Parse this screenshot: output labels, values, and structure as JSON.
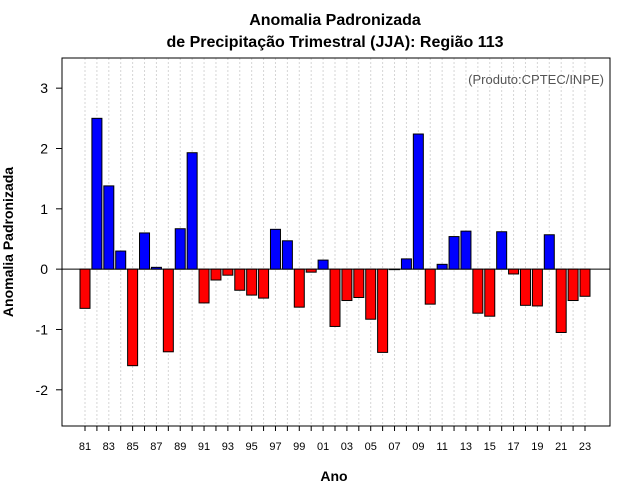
{
  "chart_data": {
    "type": "bar",
    "title": "Anomalia Padronizada",
    "subtitle": "de Precipitação Trimestral (JJA): Região 113",
    "xlabel": "Ano",
    "ylabel": "Anomalia Padronizada",
    "credit": "(Produto:CPTEC/INPE)",
    "ylim": [
      -2.6,
      3.5
    ],
    "yticks": [
      -2,
      -1,
      0,
      1,
      2,
      3
    ],
    "grid": true,
    "positive_color": "#0000ff",
    "negative_color": "#ff0000",
    "categories": [
      "81",
      "82",
      "83",
      "84",
      "85",
      "86",
      "87",
      "88",
      "89",
      "90",
      "91",
      "92",
      "93",
      "94",
      "95",
      "96",
      "97",
      "98",
      "99",
      "00",
      "01",
      "02",
      "03",
      "04",
      "05",
      "06",
      "07",
      "08",
      "09",
      "10",
      "11",
      "12",
      "13",
      "14",
      "15",
      "16",
      "17",
      "18",
      "19",
      "20",
      "21",
      "22",
      "23"
    ],
    "xtick_labels": [
      "81",
      "83",
      "85",
      "87",
      "89",
      "91",
      "93",
      "95",
      "97",
      "99",
      "01",
      "03",
      "05",
      "07",
      "09",
      "11",
      "13",
      "15",
      "17",
      "19",
      "21",
      "23"
    ],
    "values": [
      -0.65,
      2.5,
      1.38,
      0.3,
      -1.6,
      0.6,
      0.03,
      -1.37,
      0.67,
      1.93,
      -0.56,
      -0.18,
      -0.1,
      -0.35,
      -0.43,
      -0.48,
      0.66,
      0.47,
      -0.63,
      -0.05,
      0.15,
      -0.95,
      -0.52,
      -0.47,
      -0.83,
      -1.38,
      0.0,
      0.17,
      2.24,
      -0.58,
      0.08,
      0.54,
      0.63,
      -0.73,
      -0.78,
      0.62,
      -0.08,
      -0.6,
      -0.61,
      0.57,
      -1.05,
      -0.52,
      -0.45
    ]
  }
}
